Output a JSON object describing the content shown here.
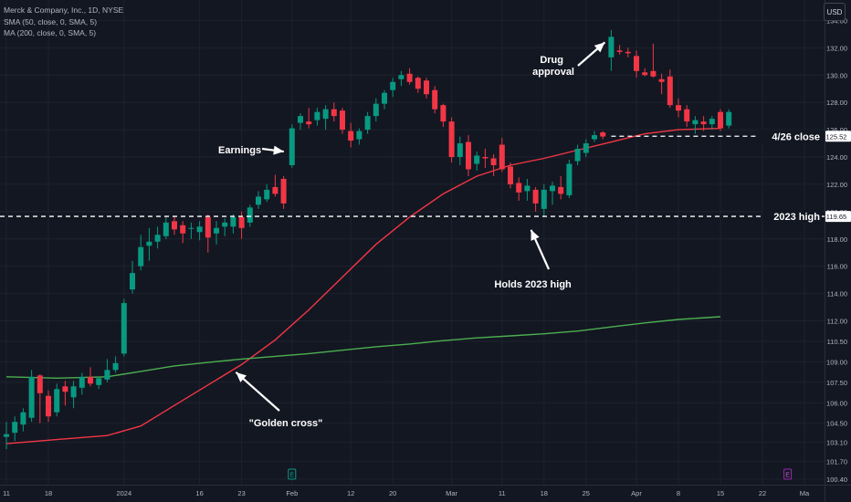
{
  "legend": {
    "line1": "Merck & Company, Inc., 1D, NYSE",
    "line2": "SMA (50, close, 0, SMA, 5)",
    "line3": "MA (200, close, 0, SMA, 5)"
  },
  "currency": "USD",
  "colors": {
    "background": "#131722",
    "up": "#089981",
    "down": "#f23645",
    "sma50": "#f23645",
    "ma200": "#4caf50",
    "grid": "#1e222d",
    "annotation": "#ffffff"
  },
  "chart_data": {
    "type": "candlestick",
    "title": "Merck & Company, Inc., 1D, NYSE",
    "ylim": [
      100.0,
      135.5
    ],
    "y_ticks": [
      100.4,
      101.7,
      103.1,
      104.5,
      106.0,
      107.5,
      109.0,
      110.5,
      112.0,
      114.0,
      116.0,
      118.0,
      120.0,
      122.0,
      124.0,
      126.0,
      128.0,
      130.0,
      132.0,
      134.0
    ],
    "x_tick_labels": [
      "11",
      "18",
      "2024",
      "16",
      "23",
      "Feb",
      "12",
      "20",
      "Mar",
      "11",
      "18",
      "25",
      "Apr",
      "8",
      "15",
      "22",
      "Ma"
    ],
    "x_tick_index": [
      0,
      5,
      14,
      23,
      28,
      34,
      41,
      46,
      53,
      59,
      64,
      69,
      75,
      80,
      85,
      90,
      95
    ],
    "grid": true,
    "candles": [
      {
        "o": 103.5,
        "h": 104.6,
        "l": 102.6,
        "c": 103.7
      },
      {
        "o": 103.8,
        "h": 105.0,
        "l": 103.2,
        "c": 104.6
      },
      {
        "o": 104.4,
        "h": 105.6,
        "l": 103.9,
        "c": 105.3
      },
      {
        "o": 104.9,
        "h": 108.4,
        "l": 104.6,
        "c": 107.9
      },
      {
        "o": 108.0,
        "h": 108.1,
        "l": 104.5,
        "c": 106.7
      },
      {
        "o": 106.5,
        "h": 106.9,
        "l": 104.6,
        "c": 105.0
      },
      {
        "o": 105.3,
        "h": 107.4,
        "l": 105.0,
        "c": 107.0
      },
      {
        "o": 107.2,
        "h": 107.6,
        "l": 105.8,
        "c": 106.8
      },
      {
        "o": 106.4,
        "h": 107.6,
        "l": 105.6,
        "c": 107.2
      },
      {
        "o": 107.1,
        "h": 108.2,
        "l": 106.6,
        "c": 107.9
      },
      {
        "o": 107.9,
        "h": 108.6,
        "l": 107.2,
        "c": 107.4
      },
      {
        "o": 107.3,
        "h": 107.9,
        "l": 107.0,
        "c": 107.8
      },
      {
        "o": 107.7,
        "h": 109.2,
        "l": 107.5,
        "c": 108.4
      },
      {
        "o": 108.4,
        "h": 109.4,
        "l": 108.2,
        "c": 108.9
      },
      {
        "o": 109.6,
        "h": 113.6,
        "l": 109.4,
        "c": 113.3
      },
      {
        "o": 114.3,
        "h": 116.4,
        "l": 114.0,
        "c": 115.5
      },
      {
        "o": 116.0,
        "h": 118.3,
        "l": 115.7,
        "c": 117.4
      },
      {
        "o": 117.5,
        "h": 118.8,
        "l": 116.4,
        "c": 117.8
      },
      {
        "o": 117.8,
        "h": 118.9,
        "l": 117.3,
        "c": 118.3
      },
      {
        "o": 118.2,
        "h": 119.6,
        "l": 118.0,
        "c": 119.2
      },
      {
        "o": 119.3,
        "h": 119.7,
        "l": 118.3,
        "c": 118.7
      },
      {
        "o": 119.0,
        "h": 119.3,
        "l": 117.7,
        "c": 118.4
      },
      {
        "o": 118.8,
        "h": 119.2,
        "l": 118.0,
        "c": 118.8
      },
      {
        "o": 118.5,
        "h": 119.3,
        "l": 117.9,
        "c": 118.9
      },
      {
        "o": 119.6,
        "h": 119.8,
        "l": 117.0,
        "c": 118.1
      },
      {
        "o": 118.4,
        "h": 119.3,
        "l": 117.6,
        "c": 118.8
      },
      {
        "o": 118.9,
        "h": 119.5,
        "l": 118.2,
        "c": 119.2
      },
      {
        "o": 118.9,
        "h": 119.8,
        "l": 118.4,
        "c": 119.6
      },
      {
        "o": 119.6,
        "h": 120.0,
        "l": 118.0,
        "c": 118.8
      },
      {
        "o": 119.2,
        "h": 120.5,
        "l": 118.9,
        "c": 120.3
      },
      {
        "o": 120.5,
        "h": 121.5,
        "l": 120.2,
        "c": 121.1
      },
      {
        "o": 120.9,
        "h": 122.0,
        "l": 120.7,
        "c": 121.6
      },
      {
        "o": 121.8,
        "h": 122.7,
        "l": 121.1,
        "c": 121.3
      },
      {
        "o": 122.4,
        "h": 122.6,
        "l": 120.2,
        "c": 120.6
      },
      {
        "o": 123.4,
        "h": 126.4,
        "l": 123.2,
        "c": 126.1
      },
      {
        "o": 126.5,
        "h": 127.2,
        "l": 126.0,
        "c": 127.0
      },
      {
        "o": 126.6,
        "h": 127.6,
        "l": 126.1,
        "c": 126.4
      },
      {
        "o": 126.7,
        "h": 127.6,
        "l": 126.3,
        "c": 127.3
      },
      {
        "o": 126.8,
        "h": 127.8,
        "l": 126.0,
        "c": 127.5
      },
      {
        "o": 127.5,
        "h": 128.0,
        "l": 126.6,
        "c": 127.0
      },
      {
        "o": 127.4,
        "h": 127.6,
        "l": 125.7,
        "c": 126.0
      },
      {
        "o": 125.9,
        "h": 126.5,
        "l": 124.7,
        "c": 125.2
      },
      {
        "o": 125.3,
        "h": 126.1,
        "l": 124.9,
        "c": 125.9
      },
      {
        "o": 126.0,
        "h": 127.3,
        "l": 125.7,
        "c": 127.0
      },
      {
        "o": 127.0,
        "h": 128.3,
        "l": 126.6,
        "c": 127.9
      },
      {
        "o": 127.9,
        "h": 128.9,
        "l": 127.5,
        "c": 128.7
      },
      {
        "o": 128.9,
        "h": 129.8,
        "l": 128.4,
        "c": 129.5
      },
      {
        "o": 129.7,
        "h": 130.3,
        "l": 129.2,
        "c": 130.0
      },
      {
        "o": 130.1,
        "h": 130.5,
        "l": 129.3,
        "c": 129.5
      },
      {
        "o": 129.8,
        "h": 129.9,
        "l": 128.7,
        "c": 129.0
      },
      {
        "o": 129.6,
        "h": 129.8,
        "l": 128.3,
        "c": 128.6
      },
      {
        "o": 128.9,
        "h": 129.2,
        "l": 127.2,
        "c": 127.5
      },
      {
        "o": 127.8,
        "h": 127.9,
        "l": 126.2,
        "c": 126.6
      },
      {
        "o": 126.6,
        "h": 126.9,
        "l": 123.6,
        "c": 124.0
      },
      {
        "o": 124.0,
        "h": 125.5,
        "l": 123.4,
        "c": 125.0
      },
      {
        "o": 125.1,
        "h": 125.6,
        "l": 122.6,
        "c": 123.1
      },
      {
        "o": 123.5,
        "h": 124.4,
        "l": 123.0,
        "c": 124.1
      },
      {
        "o": 124.0,
        "h": 124.6,
        "l": 123.2,
        "c": 123.9
      },
      {
        "o": 123.9,
        "h": 124.2,
        "l": 122.6,
        "c": 123.4
      },
      {
        "o": 124.9,
        "h": 125.4,
        "l": 122.9,
        "c": 123.1
      },
      {
        "o": 123.3,
        "h": 123.6,
        "l": 121.7,
        "c": 122.0
      },
      {
        "o": 122.1,
        "h": 122.5,
        "l": 120.8,
        "c": 121.4
      },
      {
        "o": 121.5,
        "h": 122.4,
        "l": 120.8,
        "c": 121.9
      },
      {
        "o": 121.6,
        "h": 121.8,
        "l": 120.0,
        "c": 120.6
      },
      {
        "o": 120.2,
        "h": 122.0,
        "l": 119.7,
        "c": 121.6
      },
      {
        "o": 121.5,
        "h": 122.2,
        "l": 120.5,
        "c": 121.9
      },
      {
        "o": 121.8,
        "h": 122.6,
        "l": 120.9,
        "c": 121.3
      },
      {
        "o": 121.2,
        "h": 123.8,
        "l": 121.0,
        "c": 123.5
      },
      {
        "o": 123.7,
        "h": 124.9,
        "l": 123.4,
        "c": 124.6
      },
      {
        "o": 124.3,
        "h": 125.3,
        "l": 124.0,
        "c": 125.0
      },
      {
        "o": 125.3,
        "h": 125.9,
        "l": 125.1,
        "c": 125.6
      },
      {
        "o": 125.8,
        "h": 125.9,
        "l": 125.3,
        "c": 125.5
      },
      {
        "o": 131.3,
        "h": 133.3,
        "l": 130.3,
        "c": 132.8
      },
      {
        "o": 131.8,
        "h": 132.2,
        "l": 131.5,
        "c": 131.7
      },
      {
        "o": 131.7,
        "h": 132.0,
        "l": 131.3,
        "c": 131.6
      },
      {
        "o": 131.4,
        "h": 131.8,
        "l": 129.8,
        "c": 130.3
      },
      {
        "o": 130.2,
        "h": 130.5,
        "l": 129.9,
        "c": 130.0
      },
      {
        "o": 130.3,
        "h": 132.3,
        "l": 129.8,
        "c": 129.9
      },
      {
        "o": 129.7,
        "h": 130.1,
        "l": 128.6,
        "c": 129.5
      },
      {
        "o": 129.9,
        "h": 130.4,
        "l": 127.6,
        "c": 127.8
      },
      {
        "o": 127.8,
        "h": 128.3,
        "l": 126.9,
        "c": 127.4
      },
      {
        "o": 127.5,
        "h": 127.8,
        "l": 126.2,
        "c": 126.6
      },
      {
        "o": 126.4,
        "h": 127.0,
        "l": 125.7,
        "c": 126.7
      },
      {
        "o": 126.6,
        "h": 127.0,
        "l": 125.9,
        "c": 126.4
      },
      {
        "o": 126.4,
        "h": 127.0,
        "l": 126.0,
        "c": 126.8
      },
      {
        "o": 127.3,
        "h": 127.5,
        "l": 125.9,
        "c": 126.1
      },
      {
        "o": 126.3,
        "h": 127.5,
        "l": 126.1,
        "c": 127.3
      }
    ],
    "series": [
      {
        "name": "SMA (50, close, 0, SMA, 5)",
        "color": "#f23645",
        "points": [
          [
            0,
            103.0
          ],
          [
            6,
            103.3
          ],
          [
            12,
            103.6
          ],
          [
            16,
            104.3
          ],
          [
            20,
            105.8
          ],
          [
            24,
            107.3
          ],
          [
            28,
            108.8
          ],
          [
            32,
            110.6
          ],
          [
            36,
            112.8
          ],
          [
            40,
            115.2
          ],
          [
            44,
            117.6
          ],
          [
            48,
            119.6
          ],
          [
            52,
            121.3
          ],
          [
            56,
            122.6
          ],
          [
            60,
            123.4
          ],
          [
            64,
            123.9
          ],
          [
            68,
            124.5
          ],
          [
            72,
            125.1
          ],
          [
            76,
            125.7
          ],
          [
            80,
            126.0
          ],
          [
            85,
            126.1
          ]
        ]
      },
      {
        "name": "MA (200, close, 0, SMA, 5)",
        "color": "#4caf50",
        "points": [
          [
            0,
            107.9
          ],
          [
            6,
            107.8
          ],
          [
            12,
            107.9
          ],
          [
            16,
            108.3
          ],
          [
            20,
            108.7
          ],
          [
            24,
            108.95
          ],
          [
            28,
            109.2
          ],
          [
            32,
            109.4
          ],
          [
            36,
            109.6
          ],
          [
            40,
            109.85
          ],
          [
            44,
            110.1
          ],
          [
            48,
            110.3
          ],
          [
            52,
            110.55
          ],
          [
            56,
            110.75
          ],
          [
            60,
            110.9
          ],
          [
            64,
            111.05
          ],
          [
            68,
            111.25
          ],
          [
            72,
            111.55
          ],
          [
            76,
            111.85
          ],
          [
            80,
            112.1
          ],
          [
            85,
            112.3
          ]
        ]
      }
    ],
    "hlines": [
      {
        "value": 119.65,
        "label": "2023 high",
        "price_label": "119.65"
      },
      {
        "value": 125.52,
        "label": "4/26 close",
        "price_label": "125.52",
        "start_index": 72
      }
    ],
    "annotations": [
      {
        "text": "Earnings",
        "index": 34,
        "value": 124.4
      },
      {
        "text": "Drug approval",
        "index": 72,
        "value": 132.4
      },
      {
        "text": "Holds 2023 high",
        "index": 63,
        "value": 119.2
      },
      {
        "text": "\"Golden cross\"",
        "index": 27,
        "value": 108.5
      }
    ],
    "event_markers": [
      {
        "type": "earnings",
        "symbol": "E",
        "index": 34
      },
      {
        "type": "earnings",
        "symbol": "E",
        "index": 93
      }
    ]
  }
}
